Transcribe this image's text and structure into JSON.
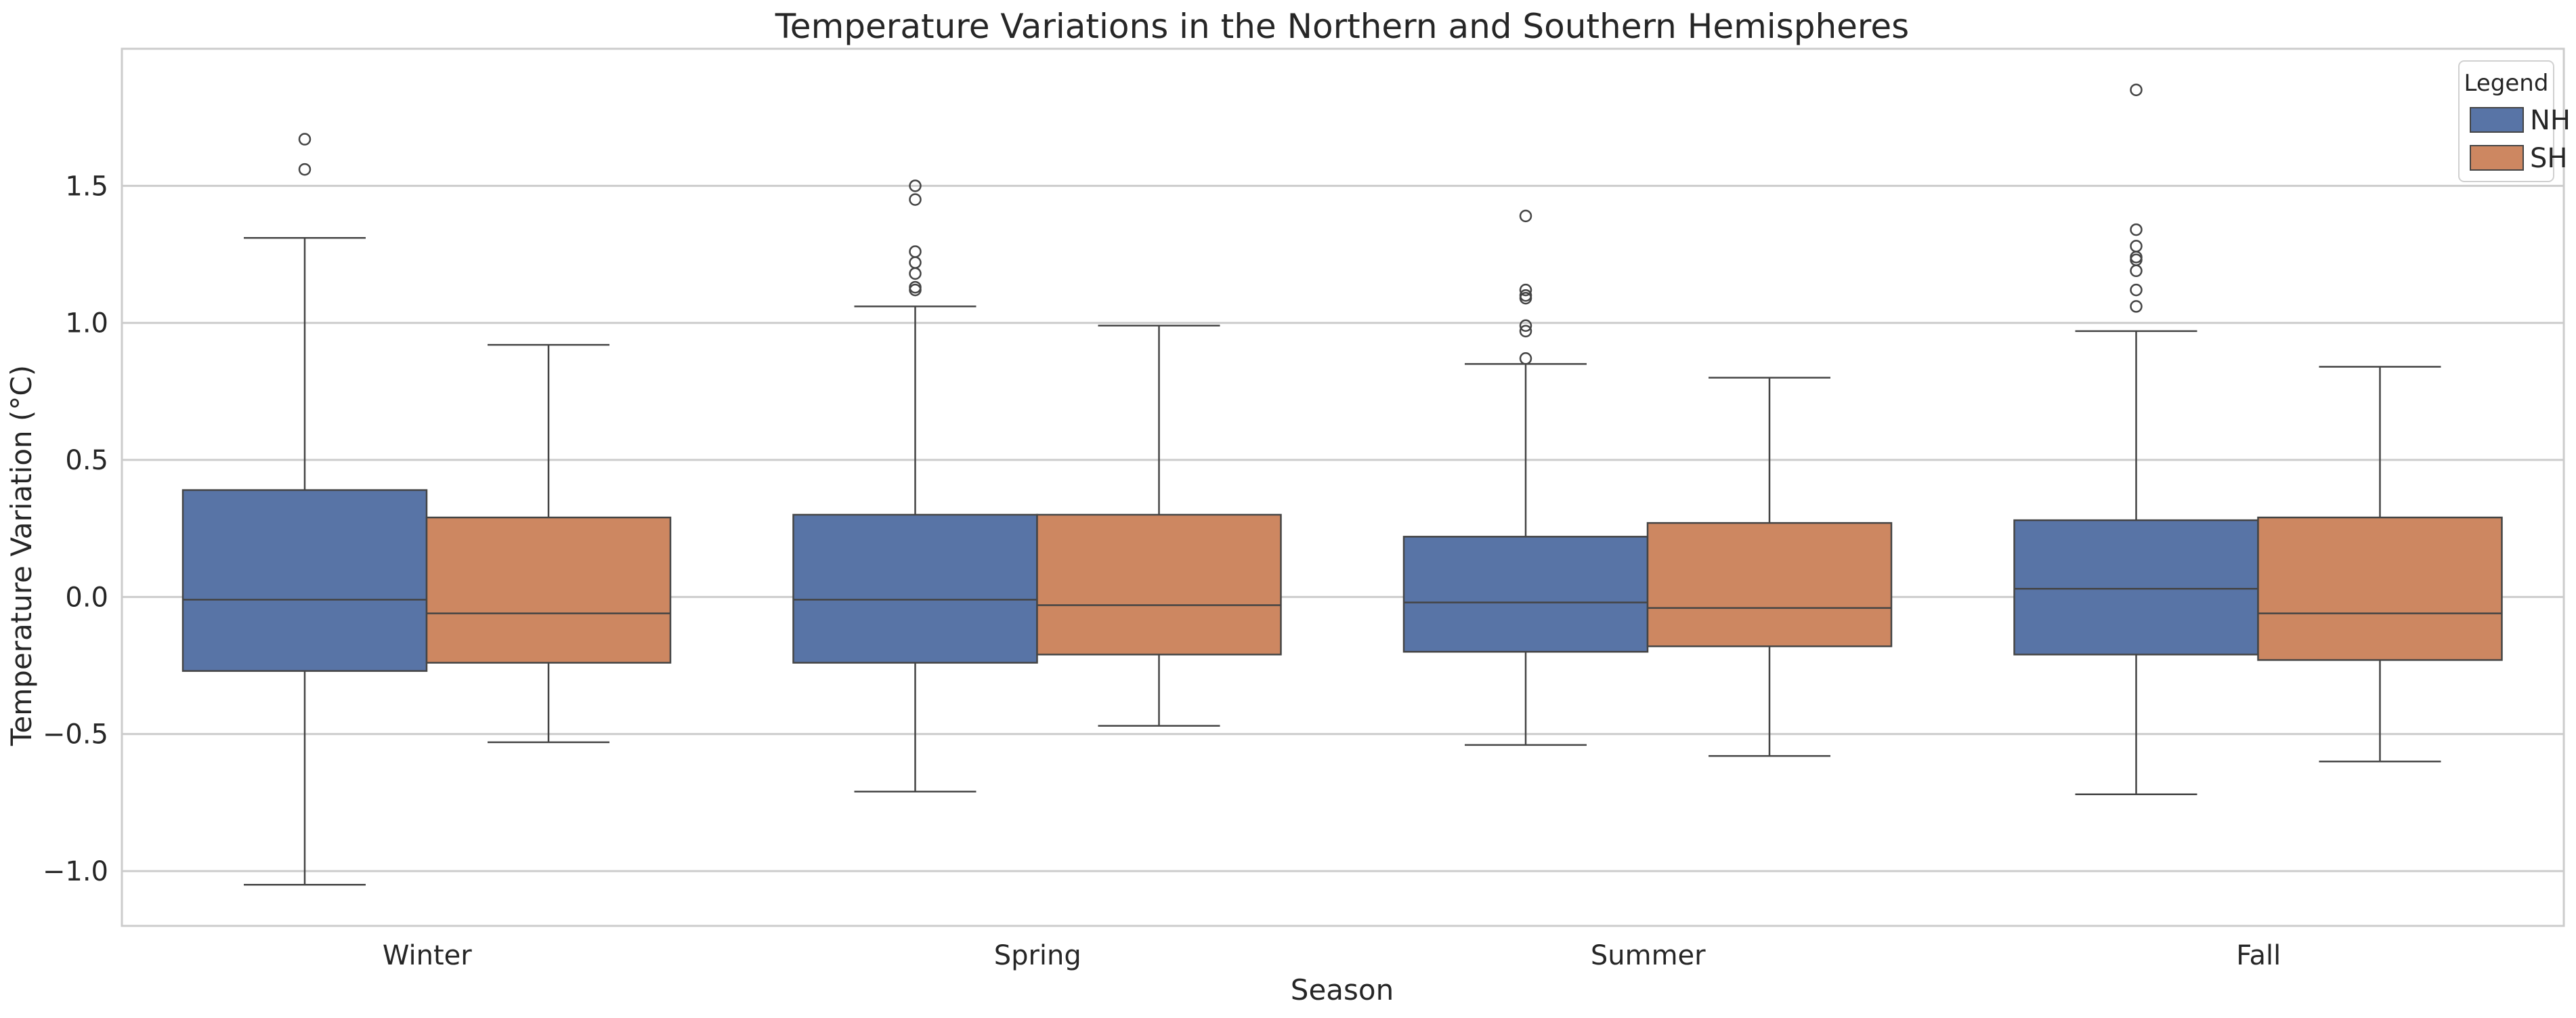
{
  "chart_data": {
    "type": "box",
    "title": "Temperature Variations in the Northern and Southern Hemispheres",
    "xlabel": "Season",
    "ylabel": "Temperature Variation (°C)",
    "categories": [
      "Winter",
      "Spring",
      "Summer",
      "Fall"
    ],
    "ylim": [
      -1.2,
      2.0
    ],
    "yticks": [
      -1.0,
      -0.5,
      0.0,
      0.5,
      1.0,
      1.5
    ],
    "ytick_labels": [
      "−1.0",
      "−0.5",
      "0.0",
      "0.5",
      "1.0",
      "1.5"
    ],
    "grid": "horizontal",
    "legend": {
      "title": "Legend",
      "placement": "top-right",
      "entries": [
        "NH",
        "SH"
      ]
    },
    "series": [
      {
        "name": "NH",
        "color": "#5874a6",
        "boxes": [
          {
            "whisker_low": -1.05,
            "q1": -0.27,
            "median": -0.01,
            "q3": 0.39,
            "whisker_high": 1.31,
            "outliers": [
              1.56,
              1.67
            ]
          },
          {
            "whisker_low": -0.71,
            "q1": -0.24,
            "median": -0.01,
            "q3": 0.3,
            "whisker_high": 1.06,
            "outliers": [
              1.12,
              1.13,
              1.18,
              1.22,
              1.26,
              1.45,
              1.5
            ]
          },
          {
            "whisker_low": -0.54,
            "q1": -0.2,
            "median": -0.02,
            "q3": 0.22,
            "whisker_high": 0.85,
            "outliers": [
              0.87,
              0.97,
              0.99,
              1.09,
              1.1,
              1.12,
              1.39
            ]
          },
          {
            "whisker_low": -0.72,
            "q1": -0.21,
            "median": 0.03,
            "q3": 0.28,
            "whisker_high": 0.97,
            "outliers": [
              1.06,
              1.12,
              1.19,
              1.23,
              1.24,
              1.28,
              1.34,
              1.85
            ]
          }
        ]
      },
      {
        "name": "SH",
        "color": "#cd8761",
        "boxes": [
          {
            "whisker_low": -0.53,
            "q1": -0.24,
            "median": -0.06,
            "q3": 0.29,
            "whisker_high": 0.92,
            "outliers": []
          },
          {
            "whisker_low": -0.47,
            "q1": -0.21,
            "median": -0.03,
            "q3": 0.3,
            "whisker_high": 0.99,
            "outliers": []
          },
          {
            "whisker_low": -0.58,
            "q1": -0.18,
            "median": -0.04,
            "q3": 0.27,
            "whisker_high": 0.8,
            "outliers": []
          },
          {
            "whisker_low": -0.6,
            "q1": -0.23,
            "median": -0.06,
            "q3": 0.29,
            "whisker_high": 0.84,
            "outliers": []
          }
        ]
      }
    ]
  }
}
